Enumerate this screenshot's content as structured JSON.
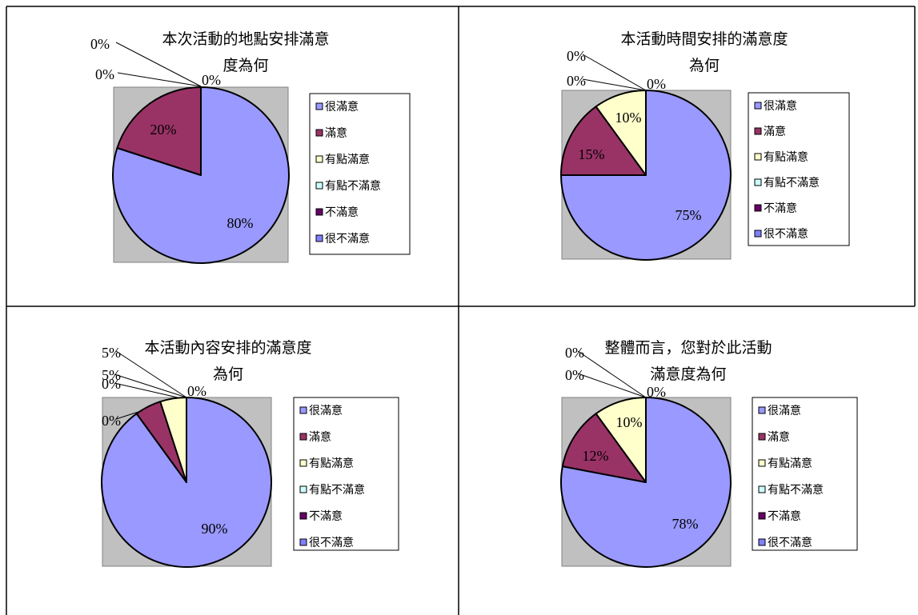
{
  "legend_labels": [
    "很滿意",
    "滿意",
    "有點滿意",
    "有點不滿意",
    "不滿意",
    "很不滿意"
  ],
  "colors": {
    "slices": [
      "#9999FF",
      "#993366",
      "#FFFFCC",
      "#CCFFFF",
      "#660066",
      "#8080FF"
    ],
    "plot_area": "#C0C0C0",
    "table_border": "#000000"
  },
  "chart_data": [
    {
      "type": "pie",
      "title_lines": [
        "本次活動的地點安排滿意",
        "度為何"
      ],
      "categories": [
        "很滿意",
        "滿意",
        "有點滿意",
        "有點不滿意",
        "不滿意",
        "很不滿意"
      ],
      "values": [
        80,
        20,
        0,
        0,
        0,
        0
      ],
      "labels": [
        "80%",
        "20%",
        "0%",
        "0%",
        "0%",
        "0%"
      ],
      "legend_position": "right"
    },
    {
      "type": "pie",
      "title_lines": [
        "本活動時間安排的滿意度",
        "為何"
      ],
      "categories": [
        "很滿意",
        "滿意",
        "有點滿意",
        "有點不滿意",
        "不滿意",
        "很不滿意"
      ],
      "values": [
        75,
        15,
        10,
        0,
        0,
        0
      ],
      "labels": [
        "75%",
        "15%",
        "10%",
        "0%",
        "0%",
        "0%"
      ],
      "legend_position": "right"
    },
    {
      "type": "pie",
      "title_lines": [
        "本活動內容安排的滿意度",
        "為何"
      ],
      "categories": [
        "很滿意",
        "滿意",
        "有點滿意",
        "有點不滿意",
        "不滿意",
        "很不滿意"
      ],
      "values": [
        90,
        5,
        5,
        0,
        0,
        0
      ],
      "labels": [
        "90%",
        "5%",
        "5%",
        "0%",
        "0%",
        "0%"
      ],
      "legend_position": "right"
    },
    {
      "type": "pie",
      "title_lines": [
        "整體而言，您對於此活動",
        "滿意度為何"
      ],
      "categories": [
        "很滿意",
        "滿意",
        "有點滿意",
        "有點不滿意",
        "不滿意",
        "很不滿意"
      ],
      "values": [
        78,
        12,
        10,
        0,
        0,
        0
      ],
      "labels": [
        "78%",
        "12%",
        "10%",
        "0%",
        "0%",
        "0%"
      ],
      "legend_position": "right"
    }
  ]
}
